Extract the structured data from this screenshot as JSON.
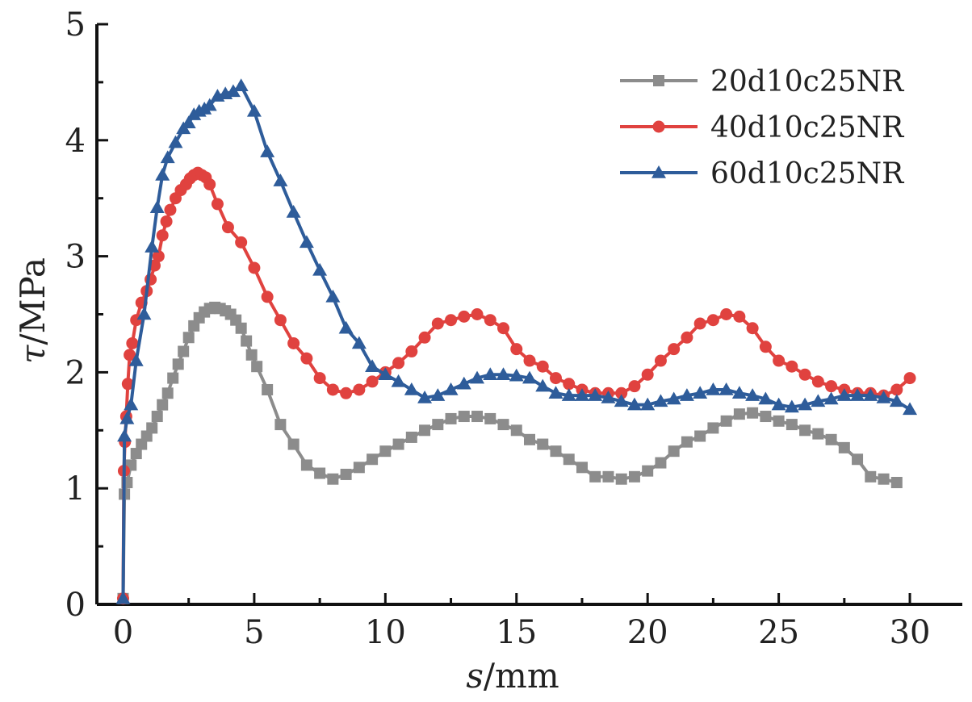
{
  "chart_data": {
    "type": "line",
    "xlabel": {
      "italic": "s",
      "rest": "/mm"
    },
    "ylabel": {
      "italic": "τ",
      "rest": "/MPa"
    },
    "xlim": [
      -1,
      32
    ],
    "ylim": [
      0,
      5
    ],
    "xticks": [
      0,
      5,
      10,
      15,
      20,
      25,
      30
    ],
    "yticks": [
      0,
      1,
      2,
      3,
      4,
      5
    ],
    "grid": false,
    "legend_position": "top-right",
    "series": [
      {
        "name": "20d10c25NR",
        "color": "#8c8c8c",
        "marker": "square",
        "points": [
          [
            0,
            0.05
          ],
          [
            0.05,
            0.95
          ],
          [
            0.15,
            1.05
          ],
          [
            0.3,
            1.2
          ],
          [
            0.5,
            1.3
          ],
          [
            0.7,
            1.38
          ],
          [
            0.9,
            1.45
          ],
          [
            1.1,
            1.52
          ],
          [
            1.3,
            1.62
          ],
          [
            1.5,
            1.72
          ],
          [
            1.7,
            1.82
          ],
          [
            1.9,
            1.95
          ],
          [
            2.1,
            2.07
          ],
          [
            2.3,
            2.18
          ],
          [
            2.5,
            2.3
          ],
          [
            2.7,
            2.4
          ],
          [
            2.9,
            2.47
          ],
          [
            3.1,
            2.52
          ],
          [
            3.3,
            2.55
          ],
          [
            3.5,
            2.56
          ],
          [
            3.7,
            2.55
          ],
          [
            3.9,
            2.53
          ],
          [
            4.1,
            2.5
          ],
          [
            4.3,
            2.45
          ],
          [
            4.5,
            2.38
          ],
          [
            4.7,
            2.27
          ],
          [
            4.9,
            2.15
          ],
          [
            5.1,
            2.05
          ],
          [
            5.5,
            1.85
          ],
          [
            6,
            1.55
          ],
          [
            6.5,
            1.38
          ],
          [
            7,
            1.2
          ],
          [
            7.5,
            1.13
          ],
          [
            8,
            1.08
          ],
          [
            8.5,
            1.12
          ],
          [
            9,
            1.18
          ],
          [
            9.5,
            1.25
          ],
          [
            10,
            1.32
          ],
          [
            10.5,
            1.38
          ],
          [
            11,
            1.44
          ],
          [
            11.5,
            1.5
          ],
          [
            12,
            1.55
          ],
          [
            12.5,
            1.6
          ],
          [
            13,
            1.62
          ],
          [
            13.5,
            1.62
          ],
          [
            14,
            1.6
          ],
          [
            14.5,
            1.55
          ],
          [
            15,
            1.5
          ],
          [
            15.5,
            1.42
          ],
          [
            16,
            1.38
          ],
          [
            16.5,
            1.32
          ],
          [
            17,
            1.25
          ],
          [
            17.5,
            1.18
          ],
          [
            18,
            1.1
          ],
          [
            18.5,
            1.1
          ],
          [
            19,
            1.08
          ],
          [
            19.5,
            1.1
          ],
          [
            20,
            1.15
          ],
          [
            20.5,
            1.22
          ],
          [
            21,
            1.32
          ],
          [
            21.5,
            1.4
          ],
          [
            22,
            1.45
          ],
          [
            22.5,
            1.52
          ],
          [
            23,
            1.58
          ],
          [
            23.5,
            1.64
          ],
          [
            24,
            1.65
          ],
          [
            24.5,
            1.62
          ],
          [
            25,
            1.58
          ],
          [
            25.5,
            1.55
          ],
          [
            26,
            1.5
          ],
          [
            26.5,
            1.47
          ],
          [
            27,
            1.42
          ],
          [
            27.5,
            1.35
          ],
          [
            28,
            1.25
          ],
          [
            28.5,
            1.1
          ],
          [
            29,
            1.08
          ],
          [
            29.5,
            1.05
          ]
        ]
      },
      {
        "name": "40d10c25NR",
        "color": "#e0423f",
        "marker": "circle",
        "points": [
          [
            0,
            0.05
          ],
          [
            0.03,
            1.15
          ],
          [
            0.07,
            1.4
          ],
          [
            0.12,
            1.62
          ],
          [
            0.18,
            1.9
          ],
          [
            0.25,
            2.15
          ],
          [
            0.35,
            2.25
          ],
          [
            0.5,
            2.45
          ],
          [
            0.7,
            2.6
          ],
          [
            0.9,
            2.7
          ],
          [
            1.05,
            2.8
          ],
          [
            1.2,
            2.92
          ],
          [
            1.35,
            3.0
          ],
          [
            1.5,
            3.18
          ],
          [
            1.65,
            3.3
          ],
          [
            1.8,
            3.4
          ],
          [
            2.0,
            3.5
          ],
          [
            2.2,
            3.57
          ],
          [
            2.4,
            3.62
          ],
          [
            2.55,
            3.67
          ],
          [
            2.7,
            3.7
          ],
          [
            2.85,
            3.72
          ],
          [
            3.0,
            3.7
          ],
          [
            3.15,
            3.68
          ],
          [
            3.3,
            3.62
          ],
          [
            3.6,
            3.45
          ],
          [
            4.0,
            3.25
          ],
          [
            4.5,
            3.12
          ],
          [
            5,
            2.9
          ],
          [
            5.5,
            2.65
          ],
          [
            6,
            2.45
          ],
          [
            6.5,
            2.25
          ],
          [
            7,
            2.12
          ],
          [
            7.5,
            1.95
          ],
          [
            8,
            1.85
          ],
          [
            8.5,
            1.82
          ],
          [
            9,
            1.85
          ],
          [
            9.5,
            1.92
          ],
          [
            10,
            2.0
          ],
          [
            10.5,
            2.08
          ],
          [
            11,
            2.18
          ],
          [
            11.5,
            2.3
          ],
          [
            12,
            2.42
          ],
          [
            12.5,
            2.45
          ],
          [
            13,
            2.48
          ],
          [
            13.5,
            2.5
          ],
          [
            14,
            2.45
          ],
          [
            14.5,
            2.38
          ],
          [
            15,
            2.2
          ],
          [
            15.5,
            2.1
          ],
          [
            16,
            2.05
          ],
          [
            16.5,
            1.95
          ],
          [
            17,
            1.9
          ],
          [
            17.5,
            1.85
          ],
          [
            18,
            1.82
          ],
          [
            18.5,
            1.82
          ],
          [
            19,
            1.82
          ],
          [
            19.5,
            1.88
          ],
          [
            20,
            1.98
          ],
          [
            20.5,
            2.1
          ],
          [
            21,
            2.2
          ],
          [
            21.5,
            2.3
          ],
          [
            22,
            2.42
          ],
          [
            22.5,
            2.45
          ],
          [
            23,
            2.5
          ],
          [
            23.5,
            2.48
          ],
          [
            24,
            2.38
          ],
          [
            24.5,
            2.22
          ],
          [
            25,
            2.1
          ],
          [
            25.5,
            2.05
          ],
          [
            26,
            1.98
          ],
          [
            26.5,
            1.92
          ],
          [
            27,
            1.88
          ],
          [
            27.5,
            1.85
          ],
          [
            28,
            1.82
          ],
          [
            28.5,
            1.82
          ],
          [
            29,
            1.8
          ],
          [
            29.5,
            1.85
          ],
          [
            30,
            1.95
          ]
        ]
      },
      {
        "name": "60d10c25NR",
        "color": "#2e5c9a",
        "marker": "triangle",
        "points": [
          [
            0,
            0.05
          ],
          [
            0.05,
            1.45
          ],
          [
            0.15,
            1.6
          ],
          [
            0.3,
            1.72
          ],
          [
            0.5,
            2.1
          ],
          [
            0.8,
            2.5
          ],
          [
            1.1,
            3.08
          ],
          [
            1.3,
            3.42
          ],
          [
            1.5,
            3.7
          ],
          [
            1.7,
            3.85
          ],
          [
            2.0,
            3.98
          ],
          [
            2.3,
            4.1
          ],
          [
            2.5,
            4.15
          ],
          [
            2.7,
            4.22
          ],
          [
            2.9,
            4.25
          ],
          [
            3.1,
            4.27
          ],
          [
            3.3,
            4.3
          ],
          [
            3.6,
            4.38
          ],
          [
            3.9,
            4.4
          ],
          [
            4.2,
            4.42
          ],
          [
            4.5,
            4.47
          ],
          [
            5.0,
            4.25
          ],
          [
            5.5,
            3.9
          ],
          [
            6.0,
            3.65
          ],
          [
            6.5,
            3.38
          ],
          [
            7.0,
            3.12
          ],
          [
            7.5,
            2.88
          ],
          [
            8.0,
            2.65
          ],
          [
            8.5,
            2.38
          ],
          [
            9.0,
            2.25
          ],
          [
            9.5,
            2.05
          ],
          [
            10,
            1.98
          ],
          [
            10.5,
            1.92
          ],
          [
            11,
            1.85
          ],
          [
            11.5,
            1.78
          ],
          [
            12,
            1.8
          ],
          [
            12.5,
            1.85
          ],
          [
            13,
            1.9
          ],
          [
            13.5,
            1.95
          ],
          [
            14,
            1.98
          ],
          [
            14.5,
            1.98
          ],
          [
            15,
            1.97
          ],
          [
            15.5,
            1.95
          ],
          [
            16,
            1.88
          ],
          [
            16.5,
            1.82
          ],
          [
            17,
            1.8
          ],
          [
            17.5,
            1.8
          ],
          [
            18,
            1.8
          ],
          [
            18.5,
            1.78
          ],
          [
            19,
            1.75
          ],
          [
            19.5,
            1.72
          ],
          [
            20,
            1.72
          ],
          [
            20.5,
            1.75
          ],
          [
            21,
            1.77
          ],
          [
            21.5,
            1.8
          ],
          [
            22,
            1.82
          ],
          [
            22.5,
            1.85
          ],
          [
            23,
            1.85
          ],
          [
            23.5,
            1.82
          ],
          [
            24,
            1.8
          ],
          [
            24.5,
            1.77
          ],
          [
            25,
            1.72
          ],
          [
            25.5,
            1.7
          ],
          [
            26,
            1.72
          ],
          [
            26.5,
            1.75
          ],
          [
            27,
            1.77
          ],
          [
            27.5,
            1.8
          ],
          [
            28,
            1.8
          ],
          [
            28.5,
            1.8
          ],
          [
            29,
            1.78
          ],
          [
            29.5,
            1.75
          ],
          [
            30,
            1.68
          ]
        ]
      }
    ]
  }
}
